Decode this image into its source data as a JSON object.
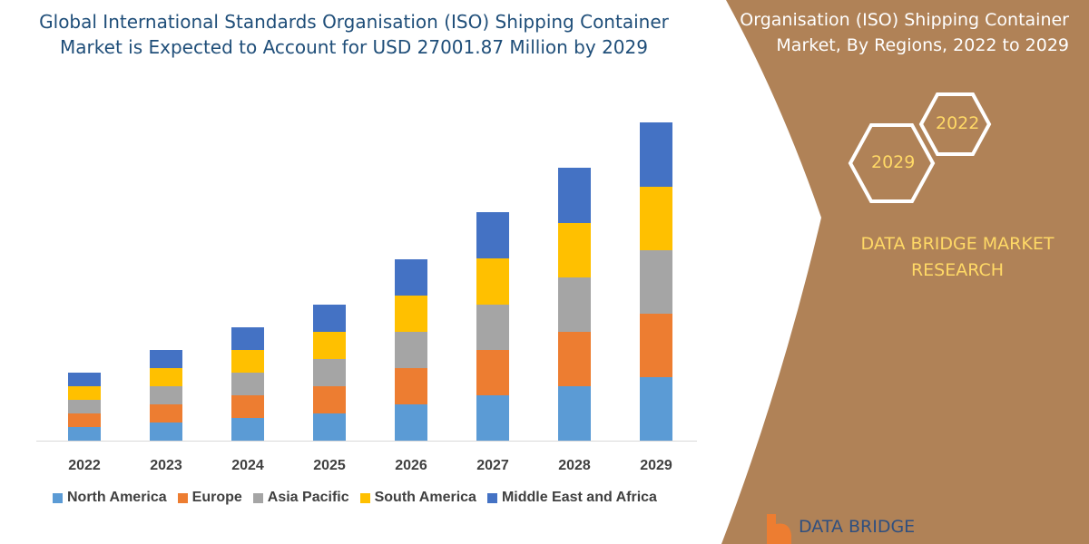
{
  "header": {
    "title": "Global International Standards Organisation (ISO) Shipping Container Market is Expected to Account for USD 27001.87 Million by 2029"
  },
  "side_panel": {
    "title": "Organisation (ISO) Shipping Container Market, By Regions, 2022 to 2029",
    "hex_top": "2022",
    "hex_bottom": "2029",
    "brand": "DATA BRIDGE MARKET RESEARCH",
    "logo_text": "DATA BRIDGE",
    "color": "#b08257",
    "brand_color": "#ffd966"
  },
  "chart_data": {
    "type": "bar",
    "stacked": true,
    "title": "Global International Standards Organisation (ISO) Shipping Container Market is Expected to Account for USD 27001.87 Million by 2029",
    "xlabel": "",
    "ylabel": "",
    "y_axis_shown": false,
    "grid": false,
    "legend_position": "bottom",
    "ylim": [
      0,
      360
    ],
    "categories": [
      "2022",
      "2023",
      "2024",
      "2025",
      "2026",
      "2027",
      "2028",
      "2029"
    ],
    "series": [
      {
        "name": "North America",
        "color": "#5b9bd5",
        "values": [
          15,
          20,
          25,
          30,
          40,
          50,
          60,
          70
        ]
      },
      {
        "name": "Europe",
        "color": "#ed7d31",
        "values": [
          15,
          20,
          25,
          30,
          40,
          50,
          60,
          70
        ]
      },
      {
        "name": "Asia Pacific",
        "color": "#a5a5a5",
        "values": [
          15,
          20,
          25,
          30,
          40,
          50,
          60,
          70
        ]
      },
      {
        "name": "South America",
        "color": "#ffc000",
        "values": [
          15,
          20,
          25,
          30,
          40,
          51,
          60,
          70
        ]
      },
      {
        "name": "Middle East and Africa",
        "color": "#4472c4",
        "values": [
          15,
          20,
          25,
          30,
          40,
          51,
          61,
          71
        ]
      }
    ]
  }
}
